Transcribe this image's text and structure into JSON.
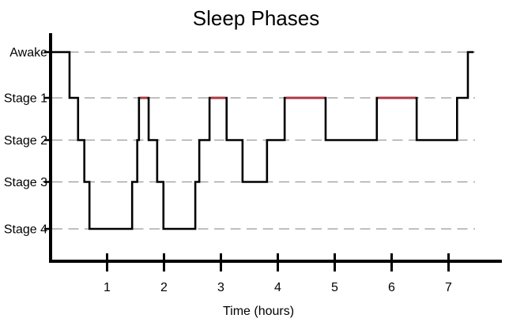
{
  "window": {
    "background": "#ffffff"
  },
  "chart_data": {
    "type": "line",
    "variant": "step-hypnogram",
    "title": "Sleep Phases",
    "xlabel": "Time (hours)",
    "x_tick_labels": [
      "1",
      "2",
      "3",
      "4",
      "5",
      "6",
      "7"
    ],
    "x_tick_hours": [
      1,
      2,
      3,
      4,
      5,
      6,
      7
    ],
    "xlim": [
      0,
      7.95
    ],
    "y_categories": [
      "Awake",
      "Stage 1",
      "Stage 2",
      "Stage 3",
      "Stage 4"
    ],
    "legend": "none",
    "grid": {
      "horizontal_dashed": true,
      "color": "#999999"
    },
    "colors": {
      "line": "#000000",
      "rem_highlight": "#ab3944",
      "axis": "#000000",
      "text": "#000000",
      "background": "#ffffff"
    },
    "segments": [
      {
        "start": 0.0,
        "end": 0.34,
        "stage": "Awake",
        "rem": false
      },
      {
        "start": 0.34,
        "end": 0.49,
        "stage": "Stage 1",
        "rem": false
      },
      {
        "start": 0.49,
        "end": 0.6,
        "stage": "Stage 2",
        "rem": false
      },
      {
        "start": 0.6,
        "end": 0.69,
        "stage": "Stage 3",
        "rem": false
      },
      {
        "start": 0.69,
        "end": 1.44,
        "stage": "Stage 4",
        "rem": false
      },
      {
        "start": 1.44,
        "end": 1.53,
        "stage": "Stage 3",
        "rem": false
      },
      {
        "start": 1.53,
        "end": 1.56,
        "stage": "Stage 2",
        "rem": false
      },
      {
        "start": 1.56,
        "end": 1.73,
        "stage": "Stage 1",
        "rem": true
      },
      {
        "start": 1.73,
        "end": 1.88,
        "stage": "Stage 2",
        "rem": false
      },
      {
        "start": 1.88,
        "end": 1.99,
        "stage": "Stage 3",
        "rem": false
      },
      {
        "start": 1.99,
        "end": 2.55,
        "stage": "Stage 4",
        "rem": false
      },
      {
        "start": 2.55,
        "end": 2.62,
        "stage": "Stage 3",
        "rem": false
      },
      {
        "start": 2.62,
        "end": 2.8,
        "stage": "Stage 2",
        "rem": false
      },
      {
        "start": 2.8,
        "end": 3.1,
        "stage": "Stage 1",
        "rem": true
      },
      {
        "start": 3.1,
        "end": 3.38,
        "stage": "Stage 2",
        "rem": false
      },
      {
        "start": 3.38,
        "end": 3.81,
        "stage": "Stage 3",
        "rem": false
      },
      {
        "start": 3.81,
        "end": 4.12,
        "stage": "Stage 2",
        "rem": false
      },
      {
        "start": 4.12,
        "end": 4.84,
        "stage": "Stage 1",
        "rem": true
      },
      {
        "start": 4.84,
        "end": 5.74,
        "stage": "Stage 2",
        "rem": false
      },
      {
        "start": 5.74,
        "end": 6.44,
        "stage": "Stage 1",
        "rem": true
      },
      {
        "start": 6.44,
        "end": 7.15,
        "stage": "Stage 2",
        "rem": false
      },
      {
        "start": 7.15,
        "end": 7.34,
        "stage": "Stage 1",
        "rem": false
      },
      {
        "start": 7.34,
        "end": 7.44,
        "stage": "Awake",
        "rem": false
      }
    ]
  }
}
